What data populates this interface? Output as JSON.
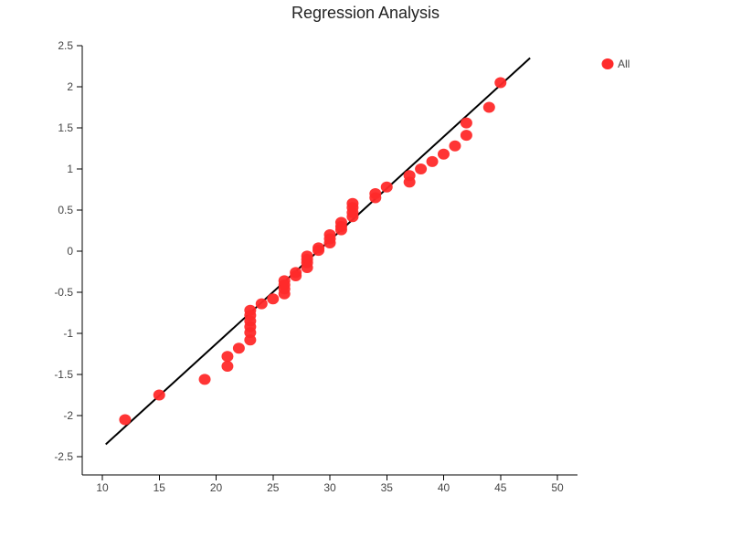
{
  "chart_data": {
    "type": "scatter",
    "title": "Regression Analysis",
    "xlabel": "",
    "ylabel": "",
    "xlim": [
      8,
      52
    ],
    "ylim": [
      -2.7,
      2.5
    ],
    "xticks": [
      10,
      15,
      20,
      25,
      30,
      35,
      40,
      45,
      50
    ],
    "yticks": [
      -2.5,
      -2,
      -1.5,
      -1,
      -0.5,
      0,
      0.5,
      1,
      1.5,
      2,
      2.5
    ],
    "grid": false,
    "legend_position": "top-right",
    "series": [
      {
        "name": "All",
        "color": "#ff2a2a",
        "points": [
          [
            12,
            -2.05
          ],
          [
            15,
            -1.75
          ],
          [
            19,
            -1.56
          ],
          [
            21,
            -1.28
          ],
          [
            21,
            -1.4
          ],
          [
            22,
            -1.18
          ],
          [
            23,
            -0.72
          ],
          [
            23,
            -0.78
          ],
          [
            23,
            -0.85
          ],
          [
            23,
            -0.92
          ],
          [
            23,
            -0.99
          ],
          [
            23,
            -1.08
          ],
          [
            24,
            -0.64
          ],
          [
            25,
            -0.58
          ],
          [
            26,
            -0.36
          ],
          [
            26,
            -0.41
          ],
          [
            26,
            -0.46
          ],
          [
            26,
            -0.52
          ],
          [
            27,
            -0.26
          ],
          [
            27,
            -0.3
          ],
          [
            28,
            -0.06
          ],
          [
            28,
            -0.1
          ],
          [
            28,
            -0.14
          ],
          [
            28,
            -0.2
          ],
          [
            29,
            0.04
          ],
          [
            29,
            0.01
          ],
          [
            30,
            0.2
          ],
          [
            30,
            0.15
          ],
          [
            30,
            0.1
          ],
          [
            31,
            0.35
          ],
          [
            31,
            0.3
          ],
          [
            31,
            0.26
          ],
          [
            32,
            0.58
          ],
          [
            32,
            0.53
          ],
          [
            32,
            0.47
          ],
          [
            32,
            0.42
          ],
          [
            34,
            0.7
          ],
          [
            34,
            0.65
          ],
          [
            35,
            0.78
          ],
          [
            37,
            0.92
          ],
          [
            37,
            0.84
          ],
          [
            38,
            1.0
          ],
          [
            39,
            1.09
          ],
          [
            40,
            1.18
          ],
          [
            41,
            1.28
          ],
          [
            42,
            1.56
          ],
          [
            42,
            1.41
          ],
          [
            44,
            1.75
          ],
          [
            45,
            2.05
          ]
        ]
      }
    ],
    "regression_line": {
      "color": "#000000",
      "points": [
        [
          10.3,
          -2.35
        ],
        [
          47.6,
          2.35
        ]
      ]
    }
  }
}
